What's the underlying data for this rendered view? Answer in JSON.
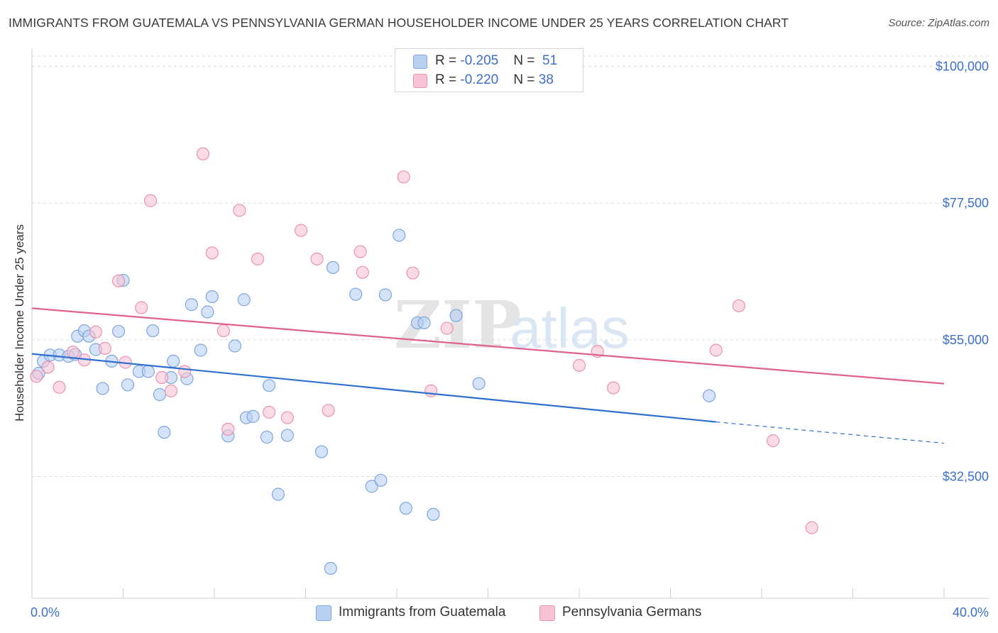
{
  "header": {
    "title": "IMMIGRANTS FROM GUATEMALA VS PENNSYLVANIA GERMAN HOUSEHOLDER INCOME UNDER 25 YEARS CORRELATION CHART",
    "source": "Source: ZipAtlas.com"
  },
  "watermark": {
    "zip": "ZIP",
    "atlas": "atlas"
  },
  "legend": {
    "rows": [
      {
        "r_label": "R = ",
        "r_value": "-0.205",
        "n_label": "N = ",
        "n_value": "51"
      },
      {
        "r_label": "R = ",
        "r_value": "-0.220",
        "n_label": "N = ",
        "n_value": "38"
      }
    ]
  },
  "colors": {
    "blue_fill": "#b8d1f3",
    "blue_stroke": "#7ea6dd",
    "blue_line": "#2f6fd0",
    "pink_fill": "#f7c3d3",
    "pink_stroke": "#e993b0",
    "pink_line": "#e0628c",
    "axis_text": "#3b6fc9",
    "grid": "#dcdcdc"
  },
  "chart_data": {
    "type": "scatter",
    "title": "IMMIGRANTS FROM GUATEMALA VS PENNSYLVANIA GERMAN HOUSEHOLDER INCOME UNDER 25 YEARS CORRELATION CHART",
    "xlabel": "",
    "ylabel": "Householder Income Under 25 years",
    "xlim": [
      0,
      40
    ],
    "ylim": [
      12500,
      102500
    ],
    "x_tick_labels": [
      "0.0%",
      "40.0%"
    ],
    "y_ticks": [
      32500,
      55000,
      77500,
      100000
    ],
    "y_tick_labels": [
      "$32,500",
      "$55,000",
      "$77,500",
      "$100,000"
    ],
    "grid": "horizontal dashed",
    "legend_placement": "top-center",
    "series": [
      {
        "name": "Immigrants from Guatemala",
        "color": "#b8d1f3",
        "points": [
          [
            0.3,
            49500
          ],
          [
            0.5,
            51500
          ],
          [
            0.8,
            52500
          ],
          [
            1.2,
            52500
          ],
          [
            1.6,
            52300
          ],
          [
            1.9,
            52600
          ],
          [
            2.0,
            55600
          ],
          [
            2.3,
            56500
          ],
          [
            2.5,
            55600
          ],
          [
            2.8,
            53400
          ],
          [
            3.1,
            47000
          ],
          [
            3.5,
            51500
          ],
          [
            3.8,
            56400
          ],
          [
            4.0,
            64800
          ],
          [
            4.2,
            47600
          ],
          [
            4.7,
            49800
          ],
          [
            5.1,
            49800
          ],
          [
            5.3,
            56500
          ],
          [
            5.6,
            46000
          ],
          [
            5.8,
            39800
          ],
          [
            6.1,
            48800
          ],
          [
            6.2,
            51500
          ],
          [
            6.8,
            48600
          ],
          [
            7.0,
            60800
          ],
          [
            7.4,
            53300
          ],
          [
            7.7,
            59600
          ],
          [
            7.9,
            62100
          ],
          [
            8.6,
            39200
          ],
          [
            8.9,
            54000
          ],
          [
            9.3,
            61600
          ],
          [
            9.4,
            42200
          ],
          [
            9.7,
            42400
          ],
          [
            10.3,
            39000
          ],
          [
            10.4,
            47500
          ],
          [
            10.8,
            29600
          ],
          [
            11.2,
            39300
          ],
          [
            12.7,
            36600
          ],
          [
            13.1,
            17400
          ],
          [
            13.2,
            66900
          ],
          [
            14.2,
            62500
          ],
          [
            14.9,
            30900
          ],
          [
            15.3,
            31900
          ],
          [
            15.5,
            62400
          ],
          [
            16.1,
            72200
          ],
          [
            16.4,
            27300
          ],
          [
            16.9,
            57800
          ],
          [
            17.2,
            57800
          ],
          [
            17.6,
            26300
          ],
          [
            18.6,
            59000
          ],
          [
            19.6,
            47800
          ],
          [
            29.7,
            45800
          ]
        ]
      },
      {
        "name": "Pennsylvania Germans",
        "color": "#f7c3d3",
        "points": [
          [
            0.2,
            49000
          ],
          [
            0.7,
            50500
          ],
          [
            1.2,
            47200
          ],
          [
            1.8,
            53000
          ],
          [
            2.3,
            51700
          ],
          [
            2.8,
            56300
          ],
          [
            3.2,
            53600
          ],
          [
            3.8,
            64700
          ],
          [
            4.1,
            51300
          ],
          [
            4.8,
            60300
          ],
          [
            5.2,
            77900
          ],
          [
            5.7,
            48800
          ],
          [
            6.1,
            46600
          ],
          [
            6.7,
            49800
          ],
          [
            7.5,
            85600
          ],
          [
            7.9,
            69300
          ],
          [
            8.4,
            56500
          ],
          [
            8.6,
            40300
          ],
          [
            9.1,
            76300
          ],
          [
            9.9,
            68300
          ],
          [
            10.4,
            43100
          ],
          [
            11.2,
            42200
          ],
          [
            11.8,
            73000
          ],
          [
            12.5,
            68300
          ],
          [
            13.0,
            43400
          ],
          [
            14.4,
            69500
          ],
          [
            14.5,
            66100
          ],
          [
            16.3,
            81800
          ],
          [
            16.7,
            66000
          ],
          [
            17.5,
            46600
          ],
          [
            18.2,
            56900
          ],
          [
            24.0,
            50800
          ],
          [
            24.8,
            53100
          ],
          [
            25.5,
            47100
          ],
          [
            30.0,
            53300
          ],
          [
            31.0,
            60600
          ],
          [
            32.5,
            38400
          ],
          [
            34.2,
            24100
          ]
        ]
      }
    ],
    "trend_lines": [
      {
        "series": "Immigrants from Guatemala",
        "x_start": 0,
        "y_start": 52700,
        "x_solid_end": 30,
        "y_solid_end": 41500,
        "x_end": 40,
        "y_end": 38000
      },
      {
        "series": "Pennsylvania Germans",
        "x_start": 0,
        "y_start": 60200,
        "x_end": 40,
        "y_end": 47800
      }
    ]
  }
}
